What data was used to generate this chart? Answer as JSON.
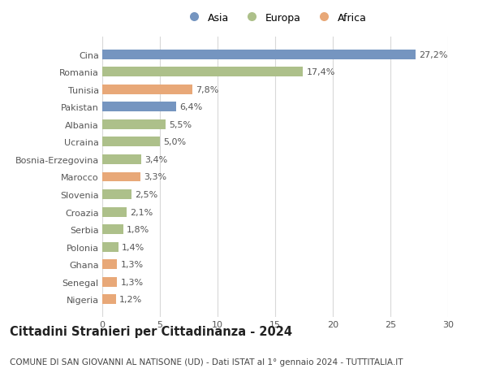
{
  "categories": [
    "Cina",
    "Romania",
    "Tunisia",
    "Pakistan",
    "Albania",
    "Ucraina",
    "Bosnia-Erzegovina",
    "Marocco",
    "Slovenia",
    "Croazia",
    "Serbia",
    "Polonia",
    "Ghana",
    "Senegal",
    "Nigeria"
  ],
  "values": [
    27.2,
    17.4,
    7.8,
    6.4,
    5.5,
    5.0,
    3.4,
    3.3,
    2.5,
    2.1,
    1.8,
    1.4,
    1.3,
    1.3,
    1.2
  ],
  "labels": [
    "27,2%",
    "17,4%",
    "7,8%",
    "6,4%",
    "5,5%",
    "5,0%",
    "3,4%",
    "3,3%",
    "2,5%",
    "2,1%",
    "1,8%",
    "1,4%",
    "1,3%",
    "1,3%",
    "1,2%"
  ],
  "continents": [
    "Asia",
    "Europa",
    "Africa",
    "Asia",
    "Europa",
    "Europa",
    "Europa",
    "Africa",
    "Europa",
    "Europa",
    "Europa",
    "Europa",
    "Africa",
    "Africa",
    "Africa"
  ],
  "colors": {
    "Asia": "#7595c0",
    "Europa": "#adc08a",
    "Africa": "#e8a878"
  },
  "legend_order": [
    "Asia",
    "Europa",
    "Africa"
  ],
  "xlim": [
    0,
    30
  ],
  "xticks": [
    0,
    5,
    10,
    15,
    20,
    25,
    30
  ],
  "title": "Cittadini Stranieri per Cittadinanza - 2024",
  "subtitle": "COMUNE DI SAN GIOVANNI AL NATISONE (UD) - Dati ISTAT al 1° gennaio 2024 - TUTTITALIA.IT",
  "background_color": "#ffffff",
  "grid_color": "#d8d8d8",
  "bar_height": 0.55,
  "title_fontsize": 10.5,
  "subtitle_fontsize": 7.5,
  "tick_fontsize": 8,
  "label_fontsize": 8,
  "legend_fontsize": 9
}
